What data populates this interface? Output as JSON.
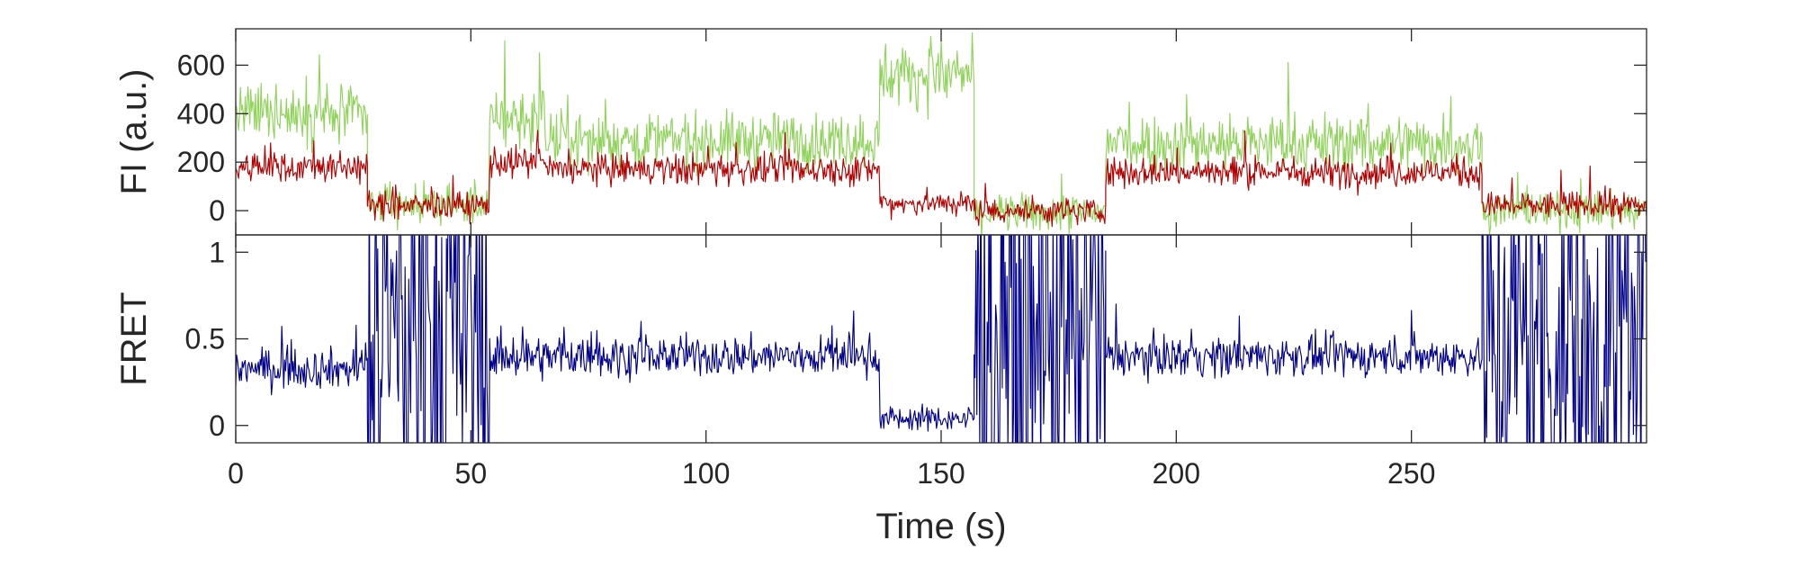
{
  "chart_data": [
    {
      "type": "line",
      "ylabel": "FI (a.u.)",
      "xlim": [
        0,
        300
      ],
      "ylim": [
        -100,
        750
      ],
      "xticks": [
        0,
        50,
        100,
        150,
        200,
        250
      ],
      "yticks": [
        0,
        200,
        400,
        600
      ],
      "x_tick_labels_shown": false,
      "grid": false,
      "series": [
        {
          "color": "#8fd35a",
          "segments": [
            [
              0,
              28,
              400,
              80
            ],
            [
              28,
              54,
              20,
              50
            ],
            [
              54,
              66,
              380,
              90
            ],
            [
              66,
              137,
              290,
              80
            ],
            [
              137,
              157,
              560,
              90
            ],
            [
              157,
              185,
              -10,
              55
            ],
            [
              185,
              265,
              280,
              85
            ],
            [
              265,
              300,
              0,
              55
            ]
          ]
        },
        {
          "color": "#b40000",
          "segments": [
            [
              0,
              28,
              180,
              45
            ],
            [
              28,
              54,
              20,
              40
            ],
            [
              54,
              66,
              200,
              45
            ],
            [
              66,
              137,
              170,
              45
            ],
            [
              137,
              157,
              30,
              35
            ],
            [
              157,
              185,
              0,
              40
            ],
            [
              185,
              265,
              160,
              45
            ],
            [
              265,
              300,
              20,
              40
            ]
          ]
        }
      ]
    },
    {
      "type": "line",
      "xlabel": "Time (s)",
      "ylabel": "FRET",
      "xlim": [
        0,
        300
      ],
      "ylim": [
        -0.1,
        1.1
      ],
      "xticks": [
        0,
        50,
        100,
        150,
        200,
        250
      ],
      "x_tick_labels": [
        "0",
        "50",
        "100",
        "150",
        "200",
        "250"
      ],
      "yticks": [
        0,
        0.5,
        1
      ],
      "y_tick_labels": [
        "0",
        "0.5",
        "1"
      ],
      "grid": false,
      "series": [
        {
          "color": "#00008b",
          "segments": [
            [
              0,
              28,
              0.33,
              0.08
            ],
            [
              28,
              54,
              0.5,
              0.9
            ],
            [
              54,
              66,
              0.4,
              0.09
            ],
            [
              66,
              137,
              0.4,
              0.08
            ],
            [
              137,
              157,
              0.04,
              0.05
            ],
            [
              157,
              185,
              0.5,
              0.9
            ],
            [
              185,
              265,
              0.4,
              0.08
            ],
            [
              265,
              300,
              0.5,
              0.9
            ]
          ]
        }
      ]
    }
  ]
}
